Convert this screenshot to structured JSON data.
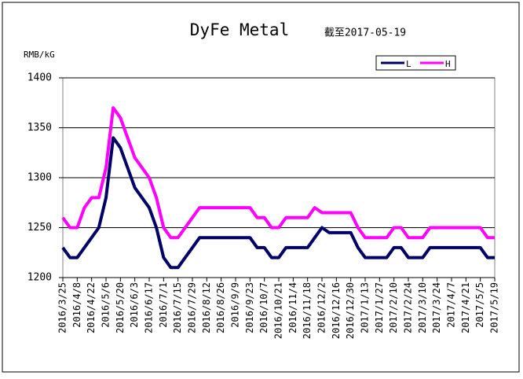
{
  "chart_data": {
    "type": "line",
    "title": "DyFe Metal",
    "subtitle": "截至2017-05-19",
    "y_label": "RMB/kG",
    "categories": [
      "2016/3/25",
      null,
      "2016/4/8",
      null,
      "2016/4/22",
      null,
      "2016/5/6",
      null,
      "2016/5/20",
      null,
      "2016/6/3",
      null,
      "2016/6/17",
      null,
      "2016/7/1",
      null,
      "2016/7/15",
      null,
      "2016/7/29",
      null,
      "2016/8/12",
      null,
      "2016/8/26",
      null,
      "2016/9/9",
      null,
      "2016/9/23",
      null,
      "2016/10/7",
      null,
      "2016/10/21",
      null,
      "2016/11/4",
      null,
      "2016/11/18",
      null,
      "2016/12/2",
      null,
      "2016/12/16",
      null,
      "2016/12/30",
      null,
      "2017/1/13",
      null,
      "2017/1/27",
      null,
      "2017/2/10",
      null,
      "2017/2/24",
      null,
      "2017/3/10",
      null,
      "2017/3/24",
      null,
      "2017/4/7",
      null,
      "2017/4/21",
      null,
      "2017/5/5",
      null,
      "2017/5/19"
    ],
    "series": [
      {
        "name": "L",
        "color": "#000066",
        "values": [
          1230,
          1220,
          1220,
          1230,
          1240,
          1250,
          1280,
          1340,
          1330,
          1310,
          1290,
          1280,
          1270,
          1250,
          1220,
          1210,
          1210,
          1220,
          1230,
          1240,
          1240,
          1240,
          1240,
          1240,
          1240,
          1240,
          1240,
          1230,
          1230,
          1220,
          1220,
          1230,
          1230,
          1230,
          1230,
          1240,
          1250,
          1245,
          1245,
          1245,
          1245,
          1230,
          1220,
          1220,
          1220,
          1220,
          1230,
          1230,
          1220,
          1220,
          1220,
          1230,
          1230,
          1230,
          1230,
          1230,
          1230,
          1230,
          1230,
          1220,
          1220
        ]
      },
      {
        "name": "H",
        "color": "#ff00ff",
        "values": [
          1260,
          1250,
          1250,
          1270,
          1280,
          1280,
          1310,
          1370,
          1360,
          1340,
          1320,
          1310,
          1300,
          1280,
          1250,
          1240,
          1240,
          1250,
          1260,
          1270,
          1270,
          1270,
          1270,
          1270,
          1270,
          1270,
          1270,
          1260,
          1260,
          1250,
          1250,
          1260,
          1260,
          1260,
          1260,
          1270,
          1265,
          1265,
          1265,
          1265,
          1265,
          1250,
          1240,
          1240,
          1240,
          1240,
          1250,
          1250,
          1240,
          1240,
          1240,
          1250,
          1250,
          1250,
          1250,
          1250,
          1250,
          1250,
          1250,
          1240,
          1240
        ]
      }
    ],
    "ylim": [
      1200,
      1400
    ],
    "yticks": [
      1200,
      1250,
      1300,
      1350,
      1400
    ],
    "grid": true
  }
}
